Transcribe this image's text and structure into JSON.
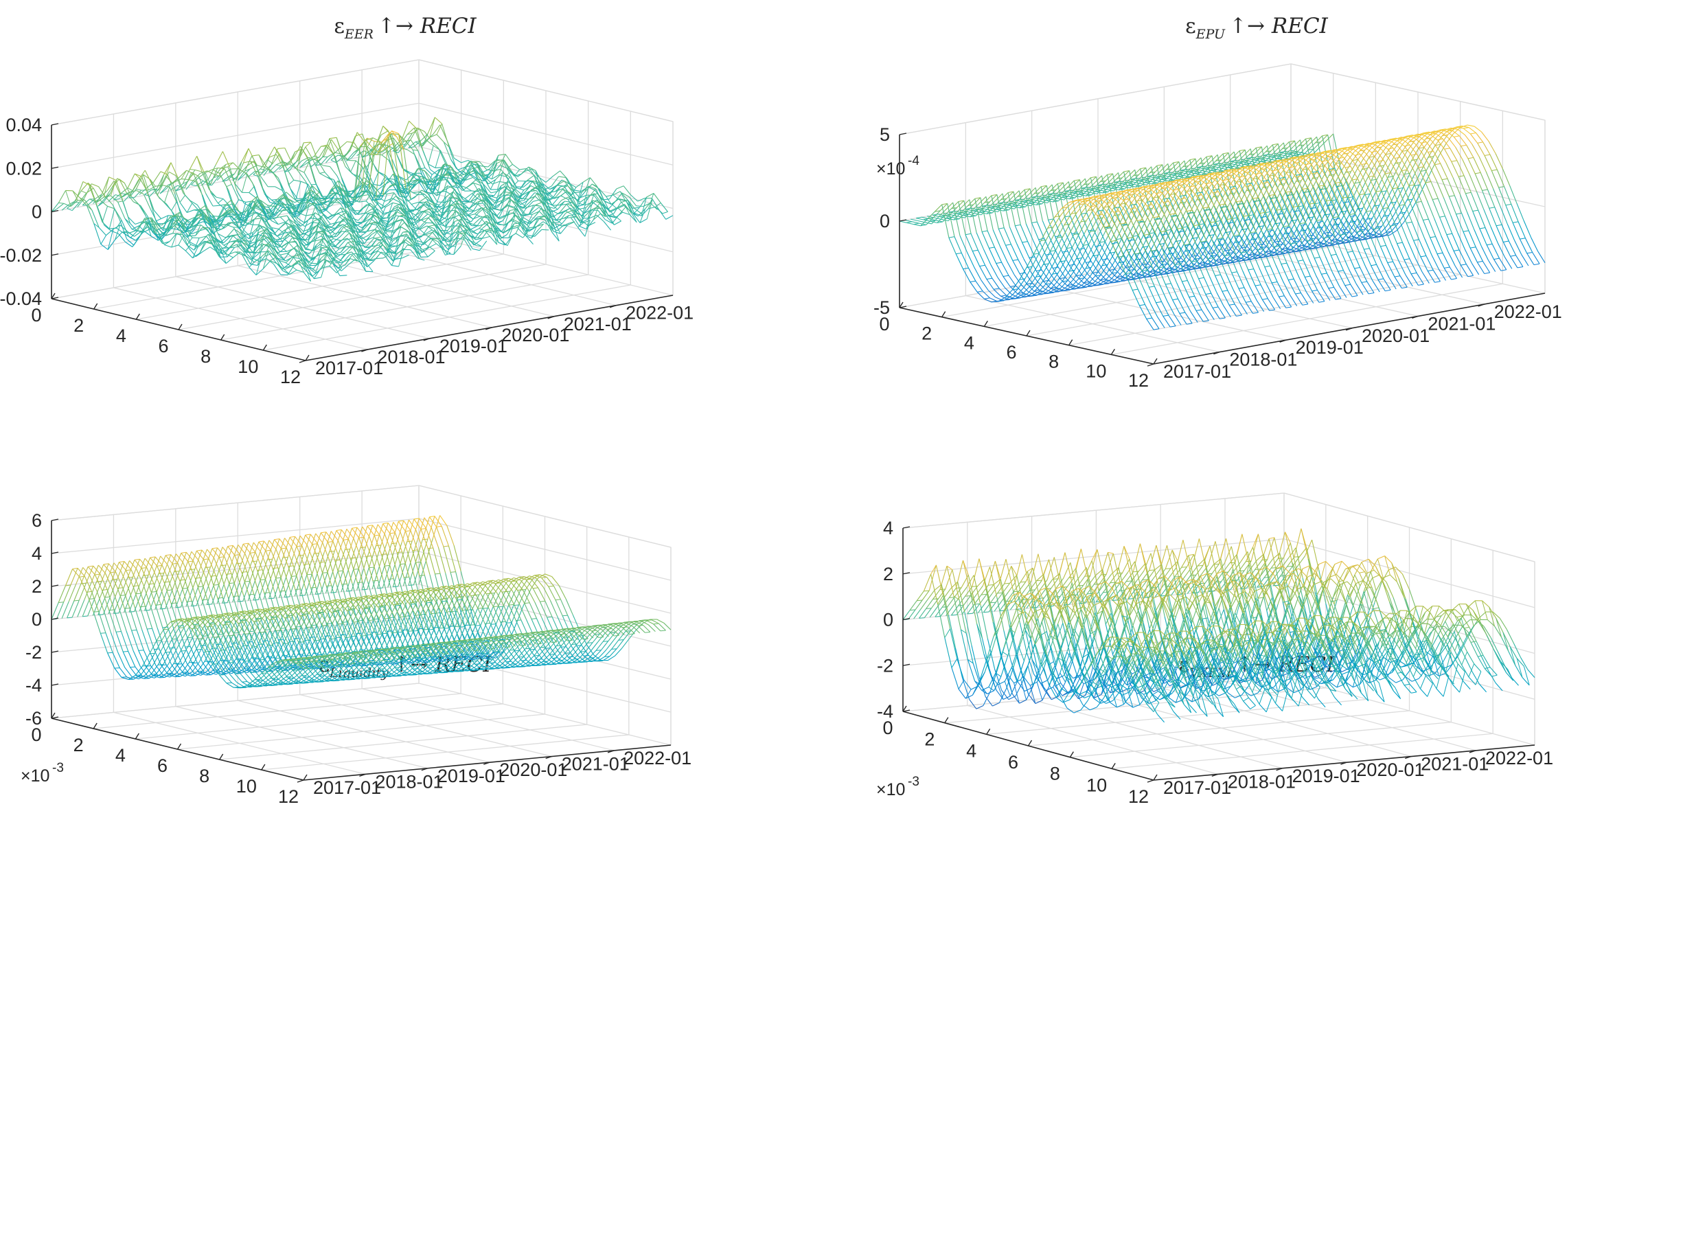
{
  "chart_data": [
    {
      "type": "surface3d",
      "title": {
        "symbol": "ε",
        "subscript": "EER",
        "suffix": "↑→ RECI"
      },
      "z_ticks": [
        "0.04",
        "0.02",
        "0",
        "-0.02",
        "-0.04"
      ],
      "z_tick_values": [
        0.04,
        0.02,
        0,
        -0.02,
        -0.04
      ],
      "zlim": [
        -0.04,
        0.04
      ],
      "z_exponent": null,
      "horizon_ticks": [
        "0",
        "2",
        "4",
        "6",
        "8",
        "10",
        "12"
      ],
      "horizon_lim": [
        0,
        12
      ],
      "date_ticks": [
        "2017-01",
        "2018-01",
        "2019-01",
        "2020-01",
        "2021-01",
        "2022-01"
      ],
      "date_lim": [
        "2017-01",
        "2022-12"
      ],
      "grid": true,
      "colormap": "parula",
      "wireframe": true
    },
    {
      "type": "surface3d",
      "title": {
        "symbol": "ε",
        "subscript": "EPU",
        "suffix": "↑→ RECI"
      },
      "z_ticks": [
        "5",
        "0",
        "-5"
      ],
      "z_tick_values": [
        5,
        0,
        -5
      ],
      "zlim": [
        -5,
        5
      ],
      "z_exponent": {
        "base": "×10",
        "power": "-4"
      },
      "horizon_ticks": [
        "0",
        "2",
        "4",
        "6",
        "8",
        "10",
        "12"
      ],
      "horizon_lim": [
        0,
        12
      ],
      "date_ticks": [
        "2017-01",
        "2018-01",
        "2019-01",
        "2020-01",
        "2021-01",
        "2022-01"
      ],
      "date_lim": [
        "2017-01",
        "2022-12"
      ],
      "grid": true,
      "colormap": "parula",
      "wireframe": true
    },
    {
      "type": "surface3d",
      "title": {
        "symbol": "ε",
        "subscript": "Liquidity",
        "suffix": "↑→ RECI"
      },
      "z_ticks": [
        "6",
        "4",
        "2",
        "0",
        "-2",
        "-4",
        "-6"
      ],
      "z_tick_values": [
        6,
        4,
        2,
        0,
        -2,
        -4,
        -6
      ],
      "zlim": [
        -6,
        6
      ],
      "z_exponent": {
        "base": "×10",
        "power": "-3"
      },
      "horizon_ticks": [
        "0",
        "2",
        "4",
        "6",
        "8",
        "10",
        "12"
      ],
      "horizon_lim": [
        0,
        12
      ],
      "date_ticks": [
        "2017-01",
        "2018-01",
        "2019-01",
        "2020-01",
        "2021-01",
        "2022-01"
      ],
      "date_lim": [
        "2017-01",
        "2022-12"
      ],
      "grid": true,
      "colormap": "parula",
      "wireframe": true
    },
    {
      "type": "surface3d",
      "title": {
        "symbol": "ε",
        "subscript": "VXFXI",
        "suffix": "↑→ RECI"
      },
      "z_ticks": [
        "4",
        "2",
        "0",
        "-2",
        "-4"
      ],
      "z_tick_values": [
        4,
        2,
        0,
        -2,
        -4
      ],
      "zlim": [
        -4,
        4
      ],
      "z_exponent": {
        "base": "×10",
        "power": "-3"
      },
      "horizon_ticks": [
        "0",
        "2",
        "4",
        "6",
        "8",
        "10",
        "12"
      ],
      "horizon_lim": [
        0,
        12
      ],
      "date_ticks": [
        "2017-01",
        "2018-01",
        "2019-01",
        "2020-01",
        "2021-01",
        "2022-01"
      ],
      "date_lim": [
        "2017-01",
        "2022-12"
      ],
      "grid": true,
      "colormap": "parula",
      "wireframe": true
    }
  ]
}
